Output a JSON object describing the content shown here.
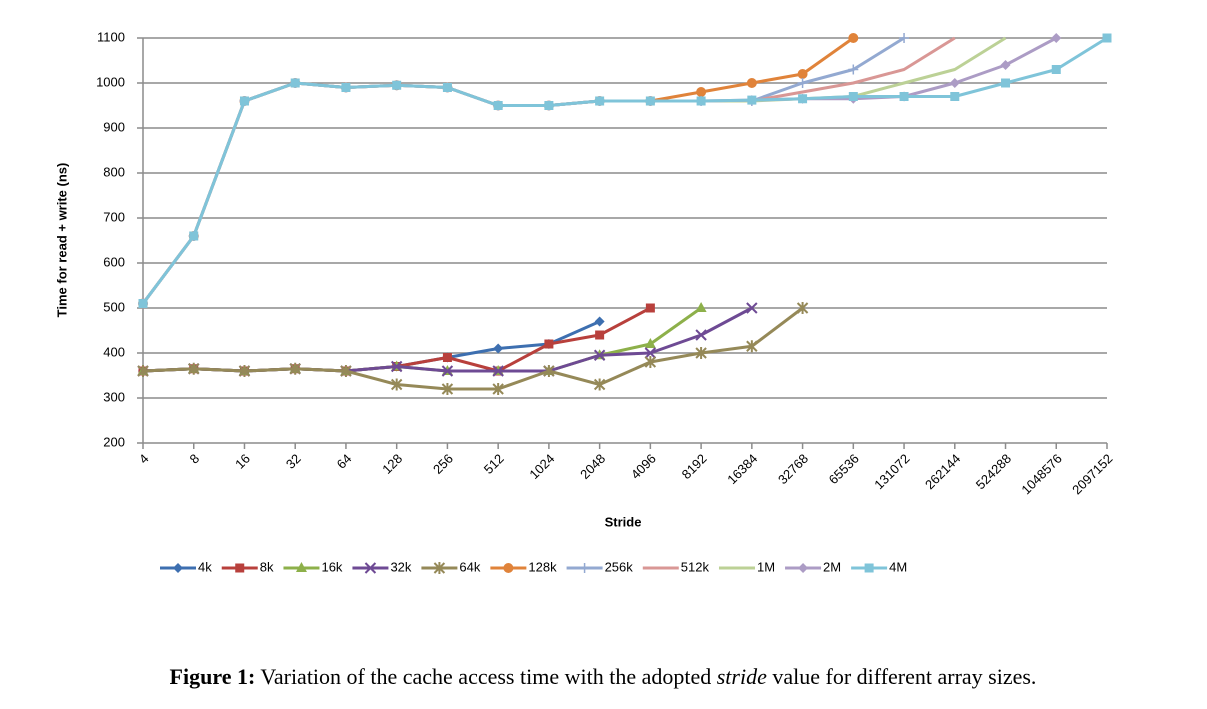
{
  "chart_data": {
    "type": "line",
    "xlabel": "Stride",
    "ylabel": "Time for read + write (ns)",
    "categories": [
      "4",
      "8",
      "16",
      "32",
      "64",
      "128",
      "256",
      "512",
      "1024",
      "2048",
      "4096",
      "8192",
      "16384",
      "32768",
      "65536",
      "131072",
      "262144",
      "524288",
      "1048576",
      "2097152"
    ],
    "ylim": [
      200,
      1100
    ],
    "yticks": [
      200,
      300,
      400,
      500,
      600,
      700,
      800,
      900,
      1000,
      1100
    ],
    "grid": true,
    "legend": "bottom",
    "series": [
      {
        "name": "4k",
        "color": "#3d6fb0",
        "marker": "diamond",
        "values": [
          360,
          365,
          360,
          365,
          360,
          370,
          390,
          410,
          420,
          470,
          null,
          null,
          null,
          null,
          null,
          null,
          null,
          null,
          null,
          null
        ]
      },
      {
        "name": "8k",
        "color": "#b8403c",
        "marker": "square",
        "values": [
          360,
          365,
          360,
          365,
          360,
          370,
          390,
          360,
          420,
          440,
          500,
          null,
          null,
          null,
          null,
          null,
          null,
          null,
          null,
          null
        ]
      },
      {
        "name": "16k",
        "color": "#8db04a",
        "marker": "triangle",
        "values": [
          360,
          365,
          360,
          365,
          360,
          370,
          360,
          360,
          360,
          395,
          420,
          500,
          null,
          null,
          null,
          null,
          null,
          null,
          null,
          null
        ]
      },
      {
        "name": "32k",
        "color": "#6e4a94",
        "marker": "x",
        "values": [
          360,
          365,
          360,
          365,
          360,
          370,
          360,
          360,
          360,
          395,
          400,
          440,
          500,
          null,
          null,
          null,
          null,
          null,
          null,
          null
        ]
      },
      {
        "name": "64k",
        "color": "#958958",
        "marker": "star",
        "values": [
          360,
          365,
          360,
          365,
          360,
          330,
          320,
          320,
          360,
          330,
          380,
          400,
          415,
          500,
          null,
          null,
          null,
          null,
          null,
          null
        ]
      },
      {
        "name": "128k",
        "color": "#e0833a",
        "marker": "circle",
        "values": [
          510,
          660,
          960,
          1000,
          990,
          995,
          990,
          950,
          950,
          960,
          960,
          980,
          1000,
          1020,
          1100,
          null,
          null,
          null,
          null,
          null
        ]
      },
      {
        "name": "256k",
        "color": "#93a9d1",
        "marker": "plus",
        "values": [
          510,
          660,
          960,
          1000,
          990,
          995,
          990,
          950,
          950,
          960,
          960,
          960,
          960,
          1000,
          1030,
          1100,
          null,
          null,
          null,
          null
        ]
      },
      {
        "name": "512k",
        "color": "#d99795",
        "marker": "none",
        "values": [
          510,
          660,
          960,
          1000,
          990,
          995,
          990,
          950,
          950,
          960,
          960,
          960,
          960,
          980,
          1000,
          1030,
          1100,
          null,
          null,
          null
        ]
      },
      {
        "name": "1M",
        "color": "#bcd196",
        "marker": "none",
        "values": [
          510,
          660,
          960,
          1000,
          990,
          995,
          990,
          950,
          950,
          960,
          960,
          960,
          960,
          965,
          970,
          1000,
          1030,
          1100,
          null,
          null
        ]
      },
      {
        "name": "2M",
        "color": "#ac9cc5",
        "marker": "diamond",
        "values": [
          510,
          660,
          960,
          1000,
          990,
          995,
          990,
          950,
          950,
          960,
          960,
          960,
          962,
          965,
          965,
          970,
          1000,
          1040,
          1100,
          null
        ]
      },
      {
        "name": "4M",
        "color": "#7fc4d9",
        "marker": "square",
        "values": [
          510,
          660,
          960,
          1000,
          990,
          995,
          990,
          950,
          950,
          960,
          960,
          960,
          962,
          965,
          970,
          970,
          970,
          1000,
          1030,
          1100
        ]
      }
    ]
  },
  "caption": {
    "label": "Figure 1:",
    "text": [
      "Variation of the cache access time with the adopted ",
      "stride",
      " value for different array sizes."
    ]
  }
}
